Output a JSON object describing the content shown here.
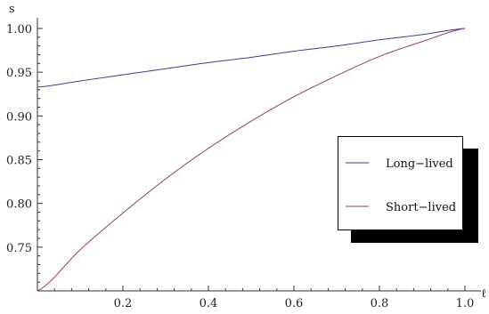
{
  "chart_data": {
    "type": "line",
    "xlabel": "ℓ",
    "ylabel": "s",
    "xlim": [
      0,
      1
    ],
    "ylim": [
      0.7,
      1.0
    ],
    "x_ticks": [
      0.2,
      0.4,
      0.6,
      0.8,
      1.0
    ],
    "x_tick_labels": [
      "0.2",
      "0.4",
      "0.6",
      "0.8",
      "1.0"
    ],
    "y_ticks": [
      0.75,
      0.8,
      0.85,
      0.9,
      0.95,
      1.0
    ],
    "y_tick_labels": [
      "0.75",
      "0.80",
      "0.85",
      "0.90",
      "0.95",
      "1.00"
    ],
    "grid": false,
    "legend_placement": "right",
    "series": [
      {
        "name": "Long−lived",
        "color": "#3a3a9a",
        "x": [
          0,
          0.1,
          0.2,
          0.3,
          0.4,
          0.5,
          0.6,
          0.7,
          0.8,
          0.9,
          1.0
        ],
        "y": [
          0.933,
          0.94,
          0.947,
          0.954,
          0.961,
          0.967,
          0.974,
          0.98,
          0.987,
          0.993,
          1.0
        ]
      },
      {
        "name": "Short−lived",
        "color": "#9a3a6a",
        "x": [
          0,
          0.1,
          0.2,
          0.3,
          0.4,
          0.5,
          0.6,
          0.7,
          0.8,
          0.9,
          1.0
        ],
        "y": [
          0.7,
          0.747,
          0.789,
          0.828,
          0.863,
          0.894,
          0.922,
          0.946,
          0.968,
          0.985,
          1.0
        ]
      }
    ]
  }
}
